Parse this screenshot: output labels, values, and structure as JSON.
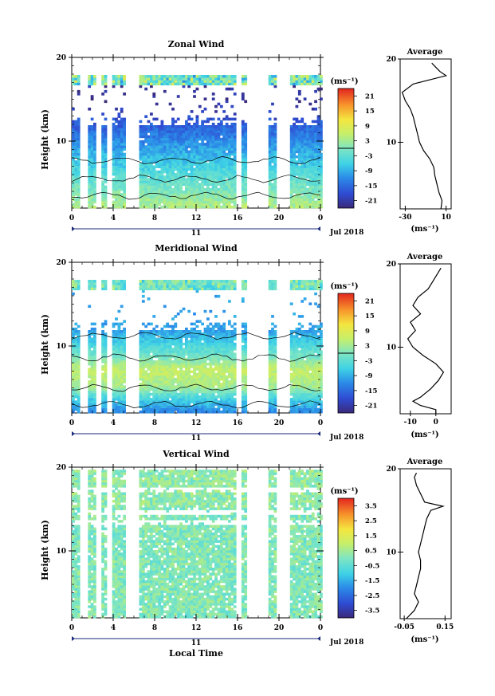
{
  "figure": {
    "date_label": "Jul 2018",
    "day_label": "11",
    "xlabel": "Local Time",
    "unit_label": "(ms⁻¹)",
    "avg_unit_label": "(ms⁻¹)"
  },
  "chart_data": [
    {
      "type": "heatmap",
      "title": "Zonal Wind",
      "xlabel": "",
      "ylabel": "Height (km)",
      "xlim": [
        0,
        24
      ],
      "ylim": [
        2,
        20
      ],
      "x_ticks": [
        "0",
        "4",
        "8",
        "12",
        "16",
        "20",
        "0"
      ],
      "y_ticks": [
        10,
        20
      ],
      "colorbar": {
        "ticks": [
          "21",
          "15",
          "9",
          "3",
          "-3",
          "-9",
          "-15",
          "-21"
        ],
        "range": [
          -24,
          24
        ],
        "contour_level": 0
      },
      "gap_times": [
        1,
        2.5,
        3.5,
        5.5,
        6,
        16,
        17,
        17.7,
        18.5,
        20,
        20.5
      ],
      "average_profile": {
        "title": "Average",
        "x_ticks": [
          "-30",
          "10"
        ],
        "xlim": [
          -35,
          15
        ],
        "height": [
          2,
          3,
          4,
          5,
          6,
          7,
          8,
          9,
          10,
          11,
          12,
          13,
          14,
          15,
          16,
          17,
          18,
          18.5,
          19,
          19.5
        ],
        "value": [
          5,
          6,
          3,
          1,
          -1,
          -2,
          -6,
          -12,
          -16,
          -18,
          -20,
          -22,
          -25,
          -30,
          -33,
          -22,
          10,
          4,
          0,
          -4
        ]
      }
    },
    {
      "type": "heatmap",
      "title": "Meridional Wind",
      "xlabel": "",
      "ylabel": "Height (km)",
      "xlim": [
        0,
        24
      ],
      "ylim": [
        2,
        20
      ],
      "x_ticks": [
        "0",
        "4",
        "8",
        "12",
        "16",
        "20",
        "0"
      ],
      "y_ticks": [
        10,
        20
      ],
      "colorbar": {
        "ticks": [
          "21",
          "15",
          "9",
          "3",
          "-3",
          "-9",
          "-15",
          "-21"
        ],
        "range": [
          -24,
          24
        ],
        "contour_level": 0
      },
      "gap_times": [
        1,
        2.5,
        3.5,
        5.5,
        6,
        16,
        17,
        17.7,
        18.5,
        20,
        20.5
      ],
      "average_profile": {
        "title": "Average",
        "x_ticks": [
          "-10",
          "0"
        ],
        "xlim": [
          -14,
          6
        ],
        "height": [
          2,
          2.5,
          3,
          3.5,
          4,
          5,
          6,
          7,
          8,
          9,
          10,
          11,
          12,
          13,
          14,
          15,
          16,
          17,
          18,
          19,
          19.5
        ],
        "value": [
          0,
          0,
          -6,
          -9,
          -6,
          -2,
          1,
          3,
          0,
          -5,
          -9,
          -11,
          -8,
          -10,
          -6,
          -9,
          -7,
          -3,
          -1,
          1,
          2
        ]
      }
    },
    {
      "type": "heatmap",
      "title": "Vertical Wind",
      "xlabel": "Local Time",
      "ylabel": "Height (km)",
      "xlim": [
        0,
        24
      ],
      "ylim": [
        2,
        20
      ],
      "x_ticks": [
        "0",
        "4",
        "8",
        "12",
        "16",
        "20",
        "0"
      ],
      "y_ticks": [
        10,
        20
      ],
      "colorbar": {
        "ticks": [
          "3.5",
          "2.5",
          "1.5",
          "0.5",
          "-0.5",
          "-1.5",
          "-2.5",
          "-3.5"
        ],
        "range": [
          -4,
          4
        ],
        "contour_level": null
      },
      "gap_times": [
        1,
        2.5,
        3.5,
        5.5,
        6,
        16,
        17,
        17.7,
        18.5,
        20,
        20.5
      ],
      "average_profile": {
        "title": "Average",
        "x_ticks": [
          "-0.05",
          "0.15"
        ],
        "xlim": [
          -0.07,
          0.18
        ],
        "height": [
          2,
          3,
          4,
          5,
          6,
          7,
          8,
          9,
          10,
          11,
          12,
          13,
          14,
          15,
          15.5,
          16,
          17,
          18,
          19,
          19.5
        ],
        "value": [
          -0.04,
          0.0,
          0.02,
          0.0,
          0.01,
          0.02,
          0.03,
          0.03,
          0.02,
          0.03,
          0.04,
          0.05,
          0.06,
          0.08,
          0.14,
          0.05,
          0.03,
          0.01,
          0.0,
          0.01
        ]
      }
    }
  ]
}
